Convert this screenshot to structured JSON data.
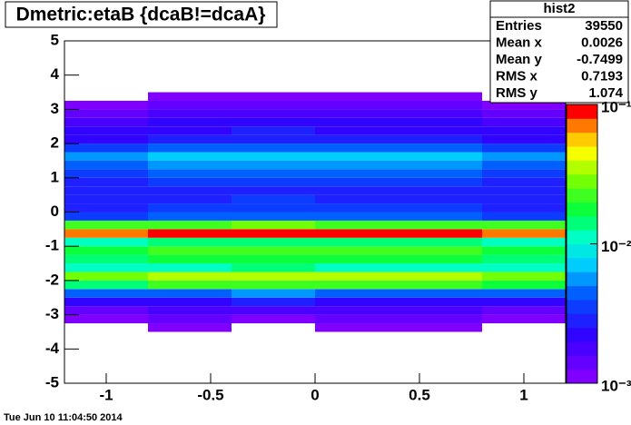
{
  "chart_data": {
    "type": "heatmap",
    "title": "Dmetric:etaB {dcaB!=dcaA}",
    "footer": "Tue Jun 10 11:04:50 2014",
    "xlim": [
      -1.2,
      1.2
    ],
    "ylim": [
      -5,
      5
    ],
    "xticks": [
      -1,
      -0.5,
      0,
      0.5,
      1
    ],
    "yticks": [
      -5,
      -4,
      -3,
      -2,
      -1,
      0,
      1,
      2,
      3,
      4,
      5
    ],
    "zlim": [
      0.001,
      0.1
    ],
    "zscale": "log",
    "zticks": [
      {
        "value": 0.001,
        "label": "10⁻³"
      },
      {
        "value": 0.01,
        "label": "10⁻²"
      },
      {
        "value": 0.1,
        "label": "10⁻¹"
      }
    ],
    "xbins": [
      -1.2,
      -0.8,
      -0.4,
      0,
      0.4,
      0.8,
      1.2
    ],
    "ybins": [
      -5,
      -4.75,
      -4.5,
      -4.25,
      -4,
      -3.75,
      -3.5,
      -3.25,
      -3,
      -2.75,
      -2.5,
      -2.25,
      -2,
      -1.75,
      -1.5,
      -1.25,
      -1,
      -0.75,
      -0.5,
      -0.25,
      0,
      0.25,
      0.5,
      0.75,
      1,
      1.25,
      1.5,
      1.75,
      2,
      2.25,
      2.5,
      2.75,
      3,
      3.25,
      3.5,
      3.75,
      4,
      4.25,
      4.5,
      4.75,
      5
    ],
    "z": [
      [
        null,
        null,
        null,
        null,
        null,
        null
      ],
      [
        null,
        null,
        null,
        null,
        null,
        null
      ],
      [
        null,
        null,
        null,
        null,
        null,
        null
      ],
      [
        null,
        null,
        null,
        null,
        null,
        null
      ],
      [
        null,
        null,
        null,
        null,
        null,
        null
      ],
      [
        null,
        null,
        null,
        null,
        null,
        null
      ],
      [
        null,
        0.0011,
        null,
        0.0011,
        0.0011,
        null
      ],
      [
        0.0012,
        0.0013,
        0.0012,
        0.0013,
        0.0014,
        0.0012
      ],
      [
        0.0015,
        0.0018,
        0.0019,
        0.0018,
        0.0017,
        0.0015
      ],
      [
        0.002,
        0.0025,
        0.0026,
        0.0024,
        0.0025,
        0.002
      ],
      [
        0.004,
        0.005,
        0.0055,
        0.005,
        0.005,
        0.004
      ],
      [
        0.015,
        0.02,
        0.022,
        0.02,
        0.021,
        0.016
      ],
      [
        0.028,
        0.035,
        0.036,
        0.034,
        0.035,
        0.03
      ],
      [
        0.01,
        0.012,
        0.013,
        0.012,
        0.012,
        0.01
      ],
      [
        0.015,
        0.018,
        0.019,
        0.018,
        0.018,
        0.015
      ],
      [
        0.017,
        0.02,
        0.021,
        0.02,
        0.02,
        0.017
      ],
      [
        0.012,
        0.014,
        0.015,
        0.014,
        0.014,
        0.012
      ],
      [
        0.07,
        0.08,
        0.085,
        0.08,
        0.08,
        0.07
      ],
      [
        0.02,
        0.025,
        0.026,
        0.025,
        0.025,
        0.02
      ],
      [
        0.0035,
        0.004,
        0.0045,
        0.004,
        0.004,
        0.0035
      ],
      [
        0.003,
        0.0035,
        0.0036,
        0.0035,
        0.0035,
        0.003
      ],
      [
        0.0026,
        0.003,
        0.0032,
        0.003,
        0.003,
        0.0026
      ],
      [
        0.0026,
        0.003,
        0.0031,
        0.003,
        0.003,
        0.0026
      ],
      [
        0.003,
        0.0035,
        0.0036,
        0.0035,
        0.0034,
        0.003
      ],
      [
        0.0035,
        0.004,
        0.0042,
        0.004,
        0.004,
        0.0035
      ],
      [
        0.005,
        0.006,
        0.0062,
        0.006,
        0.006,
        0.005
      ],
      [
        0.006,
        0.007,
        0.0072,
        0.007,
        0.007,
        0.006
      ],
      [
        0.0035,
        0.004,
        0.0042,
        0.004,
        0.004,
        0.0035
      ],
      [
        0.0025,
        0.003,
        0.0031,
        0.003,
        0.003,
        0.0025
      ],
      [
        0.002,
        0.0025,
        0.0026,
        0.0025,
        0.0025,
        0.002
      ],
      [
        0.0017,
        0.002,
        0.0021,
        0.002,
        0.002,
        0.0017
      ],
      [
        0.0015,
        0.0018,
        0.0019,
        0.0018,
        0.0018,
        0.0015
      ],
      [
        0.0012,
        0.0014,
        0.0015,
        0.0014,
        0.0014,
        0.0012
      ],
      [
        null,
        0.0011,
        0.0012,
        0.0011,
        0.0011,
        null
      ],
      [
        null,
        null,
        null,
        null,
        null,
        null
      ],
      [
        null,
        null,
        null,
        null,
        null,
        null
      ],
      [
        null,
        null,
        null,
        null,
        null,
        null
      ],
      [
        null,
        null,
        null,
        null,
        null,
        null
      ],
      [
        null,
        null,
        null,
        null,
        null,
        null
      ],
      [
        null,
        null,
        null,
        null,
        null,
        null
      ]
    ],
    "stats": {
      "title": "hist2",
      "rows": [
        [
          "Entries",
          "39550"
        ],
        [
          "Mean x",
          "0.0026"
        ],
        [
          "Mean y",
          "-0.7499"
        ],
        [
          "RMS x",
          "0.7193"
        ],
        [
          "RMS y",
          "1.074"
        ]
      ]
    }
  }
}
